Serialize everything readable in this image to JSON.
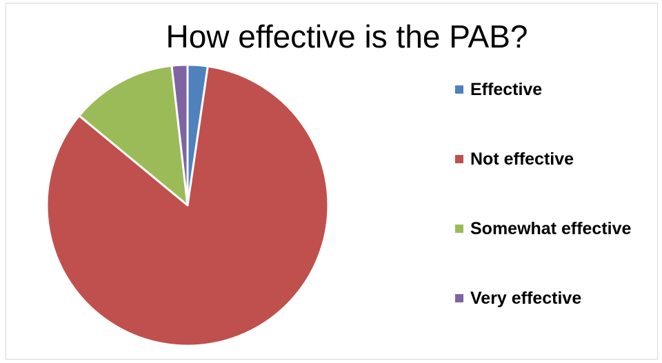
{
  "chart_data": {
    "type": "pie",
    "title": "How effective is the PAB?",
    "categories": [
      "Effective",
      "Not effective",
      "Somewhat effective",
      "Very effective"
    ],
    "values": [
      2.3,
      83.7,
      12.2,
      1.8
    ],
    "colors": [
      "#4f81bd",
      "#c0504d",
      "#9bbb59",
      "#8064a2"
    ],
    "start_angle_deg": 0,
    "direction": "clockwise",
    "slice_border_color": "#ffffff",
    "legend_position": "right"
  }
}
